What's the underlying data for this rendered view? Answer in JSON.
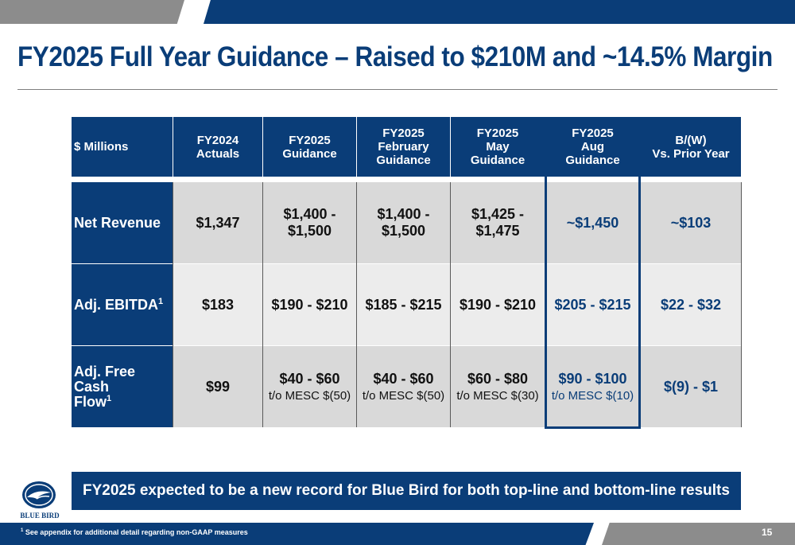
{
  "title": "FY2025 Full Year Guidance – Raised to $210M and ~14.5% Margin",
  "table": {
    "headers": [
      {
        "lines": [
          "$ Millions"
        ]
      },
      {
        "lines": [
          "FY2024",
          "Actuals"
        ]
      },
      {
        "lines": [
          "FY2025",
          "Guidance"
        ]
      },
      {
        "lines": [
          "FY2025",
          "February",
          "Guidance"
        ]
      },
      {
        "lines": [
          "FY2025",
          "May",
          "Guidance"
        ]
      },
      {
        "lines": [
          "FY2025",
          "Aug",
          "Guidance"
        ]
      },
      {
        "lines": [
          "B/(W)",
          "Vs. Prior Year"
        ]
      }
    ],
    "rows": [
      {
        "label": "Net Revenue",
        "footnote": "",
        "cells": [
          {
            "value": "$1,347",
            "sub": ""
          },
          {
            "value": "$1,400 -\n$1,500",
            "sub": ""
          },
          {
            "value": "$1,400 -\n$1,500",
            "sub": ""
          },
          {
            "value": "$1,425 -\n$1,475",
            "sub": ""
          },
          {
            "value": "~$1,450",
            "sub": ""
          },
          {
            "value": "~$103",
            "sub": ""
          }
        ]
      },
      {
        "label": "Adj. EBITDA",
        "footnote": "1",
        "cells": [
          {
            "value": "$183",
            "sub": ""
          },
          {
            "value": "$190 - $210",
            "sub": ""
          },
          {
            "value": "$185 - $215",
            "sub": ""
          },
          {
            "value": "$190 - $210",
            "sub": ""
          },
          {
            "value": "$205 - $215",
            "sub": ""
          },
          {
            "value": "$22 - $32",
            "sub": ""
          }
        ]
      },
      {
        "label": "Adj. Free Cash\nFlow",
        "footnote": "1",
        "cells": [
          {
            "value": "$99",
            "sub": ""
          },
          {
            "value": "$40 - $60",
            "sub": "t/o MESC $(50)"
          },
          {
            "value": "$40 - $60",
            "sub": "t/o MESC $(50)"
          },
          {
            "value": "$60 - $80",
            "sub": "t/o MESC $(30)"
          },
          {
            "value": "$90 - $100",
            "sub": "t/o MESC $(10)"
          },
          {
            "value": "$(9) - $1",
            "sub": ""
          }
        ]
      }
    ]
  },
  "banner": "FY2025 expected to be a new record for Blue Bird for both top-line and bottom-line results",
  "logo_text": "BLUE BIRD",
  "footnote": {
    "marker": "1",
    "text": " See appendix for additional detail regarding non-GAAP measures"
  },
  "page_number": "15",
  "colors": {
    "brand_blue": "#0a3d78",
    "gray": "#8c8c8c",
    "row_gray_dark": "#d9d9d9",
    "row_gray_light": "#ececec"
  }
}
